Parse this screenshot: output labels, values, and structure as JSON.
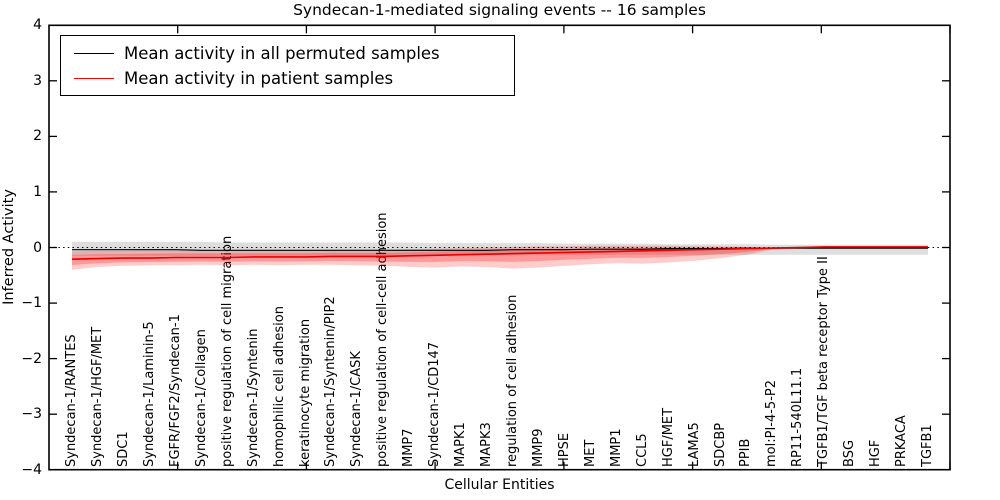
{
  "chart_data": {
    "type": "line",
    "title": "Syndecan-1-mediated signaling events -- 16 samples",
    "xlabel": "Cellular Entities",
    "ylabel": "Inferred Activity",
    "ylim": [
      -4,
      4
    ],
    "y_ticks": [
      -4,
      -3,
      -2,
      -1,
      0,
      1,
      2,
      3,
      4
    ],
    "grid": false,
    "zero_line_dashed": true,
    "legend_position": "upper left",
    "legend": [
      {
        "label": "Mean activity in all permuted samples",
        "color": "#000000"
      },
      {
        "label": "Mean activity in patient samples",
        "color": "#ff0000"
      }
    ],
    "x_categories": [
      "Syndecan-1/RANTES",
      "Syndecan-1/HGF/MET",
      "SDC1",
      "Syndecan-1/Laminin-5",
      "FGFR/FGF2/Syndecan-1",
      "Syndecan-1/Collagen",
      "positive regulation of cell migration",
      "Syndecan-1/Syntenin",
      "homophilic cell adhesion",
      "keratinocyte migration",
      "Syndecan-1/Syntenin/PIP2",
      "Syndecan-1/CASK",
      "positive regulation of cell-cell adhesion",
      "MMP7",
      "Syndecan-1/CD147",
      "MAPK1",
      "MAPK3",
      "regulation of cell adhesion",
      "MMP9",
      "HPSE",
      "MET",
      "MMP1",
      "CCL5",
      "HGF/MET",
      "LAMA5",
      "SDCBP",
      "PPIB",
      "mol:PI-4-5-P2",
      "RP11-540L11.1",
      "TGFB1/TGF beta receptor Type II",
      "BSG",
      "HGF",
      "PRKACA",
      "TGFB1"
    ],
    "series": [
      {
        "name": "Mean activity in all permuted samples",
        "color": "#000000",
        "values": [
          -0.04,
          -0.04,
          -0.04,
          -0.04,
          -0.04,
          -0.05,
          -0.05,
          -0.05,
          -0.05,
          -0.05,
          -0.05,
          -0.05,
          -0.05,
          -0.05,
          -0.05,
          -0.05,
          -0.05,
          -0.04,
          -0.04,
          -0.04,
          -0.03,
          -0.03,
          -0.03,
          -0.02,
          -0.02,
          -0.02,
          -0.01,
          -0.01,
          -0.01,
          -0.01,
          -0.01,
          -0.01,
          -0.01,
          -0.01
        ]
      },
      {
        "name": "Mean activity in patient samples",
        "color": "#e60000",
        "values": [
          -0.21,
          -0.2,
          -0.19,
          -0.19,
          -0.18,
          -0.18,
          -0.18,
          -0.17,
          -0.17,
          -0.17,
          -0.16,
          -0.16,
          -0.16,
          -0.15,
          -0.14,
          -0.13,
          -0.12,
          -0.11,
          -0.1,
          -0.09,
          -0.08,
          -0.07,
          -0.06,
          -0.05,
          -0.04,
          -0.03,
          -0.02,
          -0.01,
          0.0,
          0.01,
          0.01,
          0.01,
          0.01,
          0.01
        ]
      }
    ],
    "bands": [
      {
        "name": "permuted-samples-range",
        "color": "rgba(0,0,0,0.13)",
        "upper": [
          0.1,
          0.1,
          0.1,
          0.1,
          0.1,
          0.1,
          0.09,
          0.09,
          0.09,
          0.09,
          0.09,
          0.09,
          0.09,
          0.09,
          0.08,
          0.08,
          0.08,
          0.08,
          0.08,
          0.07,
          0.07,
          0.07,
          0.07,
          0.06,
          0.06,
          0.06,
          0.06,
          0.05,
          0.05,
          0.05,
          0.05,
          0.05,
          0.05,
          0.05
        ],
        "lower": [
          -0.15,
          -0.15,
          -0.15,
          -0.15,
          -0.15,
          -0.15,
          -0.15,
          -0.15,
          -0.15,
          -0.15,
          -0.15,
          -0.15,
          -0.15,
          -0.15,
          -0.14,
          -0.14,
          -0.14,
          -0.14,
          -0.14,
          -0.14,
          -0.14,
          -0.13,
          -0.13,
          -0.13,
          -0.13,
          -0.13,
          -0.13,
          -0.13,
          -0.13,
          -0.13,
          -0.13,
          -0.13,
          -0.13,
          -0.13
        ]
      },
      {
        "name": "patient-samples-range",
        "color": "rgba(255,0,0,0.20)",
        "upper": [
          -0.07,
          -0.06,
          -0.06,
          -0.05,
          -0.05,
          -0.05,
          -0.05,
          -0.05,
          -0.05,
          -0.05,
          -0.04,
          -0.04,
          -0.04,
          -0.03,
          -0.02,
          -0.01,
          0.0,
          0.01,
          0.02,
          0.02,
          0.03,
          0.03,
          0.03,
          0.03,
          0.02,
          0.02,
          0.01,
          0.0,
          0.01,
          0.01,
          0.01,
          0.01,
          0.02,
          0.02
        ],
        "lower": [
          -0.4,
          -0.35,
          -0.33,
          -0.32,
          -0.32,
          -0.31,
          -0.32,
          -0.31,
          -0.32,
          -0.31,
          -0.31,
          -0.32,
          -0.33,
          -0.35,
          -0.36,
          -0.34,
          -0.35,
          -0.38,
          -0.36,
          -0.33,
          -0.3,
          -0.28,
          -0.29,
          -0.27,
          -0.24,
          -0.19,
          -0.13,
          -0.04,
          -0.01,
          -0.01,
          -0.01,
          0.0,
          0.0,
          0.0
        ]
      }
    ]
  }
}
